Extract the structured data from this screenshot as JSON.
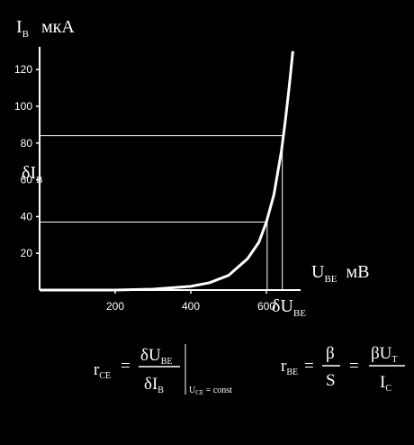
{
  "chart_data": {
    "type": "line",
    "x_unit_label": {
      "main": "U",
      "sub": "BE",
      "unit": "мВ"
    },
    "y_unit_label": {
      "main": "I",
      "sub": "B",
      "unit": "мкА"
    },
    "xlim": [
      0,
      700
    ],
    "ylim": [
      0,
      130
    ],
    "x_ticks": [
      200,
      400,
      600
    ],
    "y_ticks": [
      20,
      40,
      60,
      80,
      100,
      120
    ],
    "series": [
      {
        "x": [
          0,
          100,
          200,
          300,
          400,
          450,
          500,
          550,
          580,
          600,
          620,
          640,
          650,
          660,
          670
        ],
        "y": [
          0,
          0,
          0,
          0.5,
          2,
          4,
          8,
          17,
          26,
          37,
          52,
          76,
          92,
          110,
          130
        ]
      }
    ],
    "guides": {
      "low": {
        "x": 602,
        "y": 37
      },
      "high": {
        "x": 642,
        "y": 84
      }
    },
    "annotations": {
      "delta_i": {
        "delta": "δ",
        "main": "I",
        "sub": "B"
      },
      "delta_u": {
        "delta": "δ",
        "main": "U",
        "sub": "BE"
      }
    }
  },
  "formulas": {
    "rce": {
      "lhs_main": "r",
      "lhs_sub": "CE",
      "eq": "=",
      "num_main": "δU",
      "num_sub": "BE",
      "den_main": "δI",
      "den_sub": "B",
      "cond_main": "U",
      "cond_sub": "CE",
      "cond_rest": " = const"
    },
    "rbe": {
      "lhs_main": "r",
      "lhs_sub": "BE",
      "eq1": "=",
      "frac1_num": "β",
      "frac1_den": "S",
      "eq2": "=",
      "frac2_num_main": "βU",
      "frac2_num_sub": "T",
      "frac2_den_main": "I",
      "frac2_den_sub": "C"
    }
  }
}
